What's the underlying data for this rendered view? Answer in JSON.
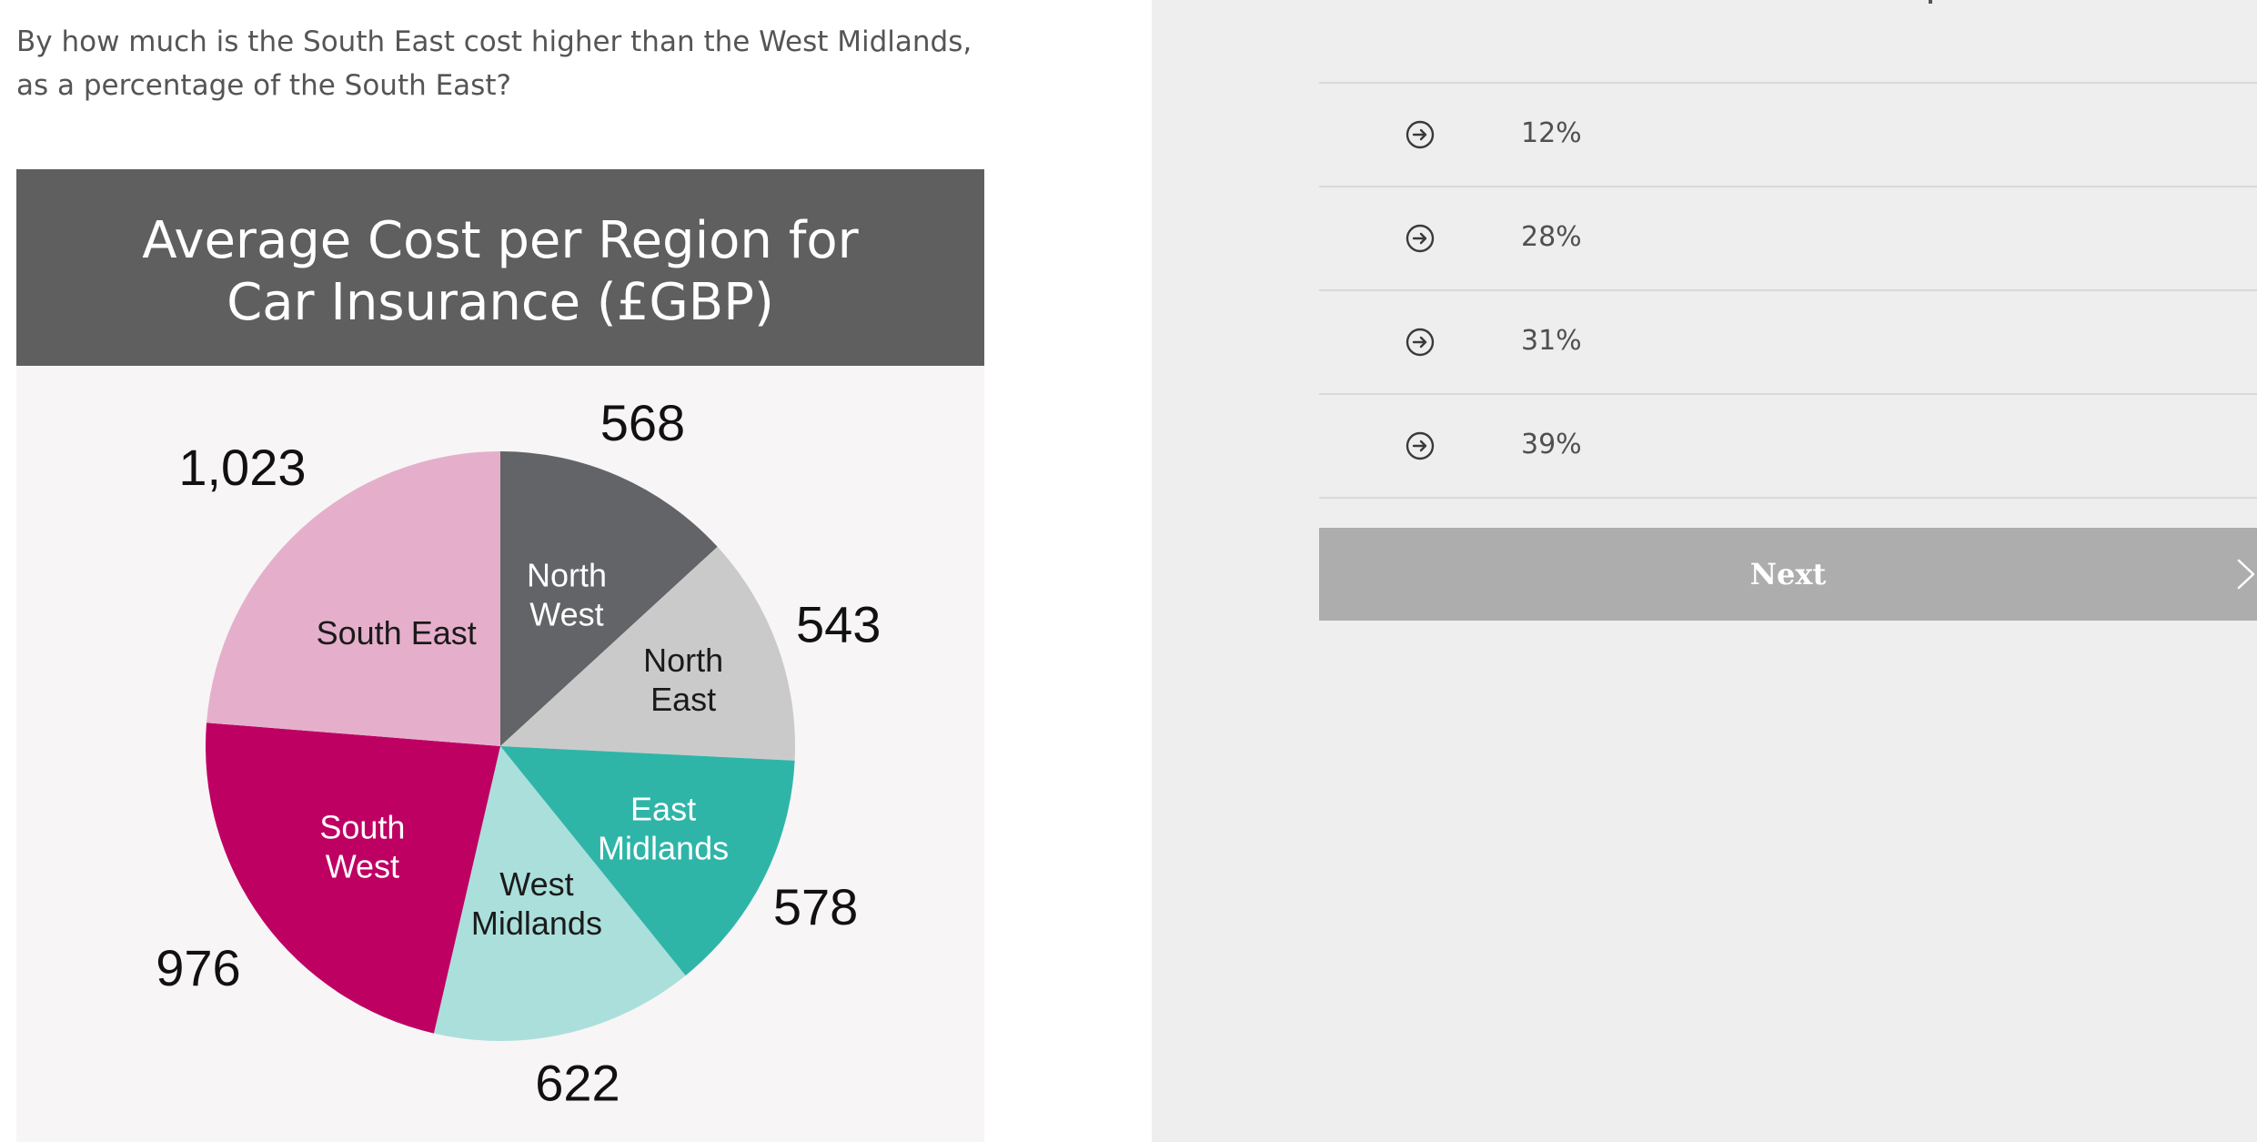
{
  "question": {
    "text": "By how much is the South East cost higher than the West Midlands, as a percentage of the South East?"
  },
  "chart_data": {
    "type": "pie",
    "title_lines": [
      "Average Cost per Region for",
      "Car Insurance (£GBP)"
    ],
    "slices": [
      {
        "label_lines": [
          "North",
          "West"
        ],
        "value": 568,
        "value_label": "568",
        "color": "#626467",
        "label_color": "#ffffff"
      },
      {
        "label_lines": [
          "North",
          "East"
        ],
        "value": 543,
        "value_label": "543",
        "color": "#cbcacb",
        "label_color": "#1a1a1a"
      },
      {
        "label_lines": [
          "East",
          "Midlands"
        ],
        "value": 578,
        "value_label": "578",
        "color": "#2fb5a8",
        "label_color": "#ffffff"
      },
      {
        "label_lines": [
          "West",
          "Midlands"
        ],
        "value": 622,
        "value_label": "622",
        "color": "#abdfdb",
        "label_color": "#1a1a1a"
      },
      {
        "label_lines": [
          "South",
          "West"
        ],
        "value": 976,
        "value_label": "976",
        "color": "#be0063",
        "label_color": "#ffffff"
      },
      {
        "label_lines": [
          "South East"
        ],
        "value": 1023,
        "value_label": "1,023",
        "color": "#e5afcb",
        "label_color": "#1a1a1a"
      }
    ]
  },
  "answers": [
    {
      "label": "12%",
      "icon": "arrow-right-circle-icon"
    },
    {
      "label": "28%",
      "icon": "arrow-right-circle-icon"
    },
    {
      "label": "31%",
      "icon": "arrow-right-circle-icon"
    },
    {
      "label": "39%",
      "icon": "arrow-right-circle-icon"
    }
  ],
  "next_button": {
    "label": "Next",
    "icon": "chevron-right-icon"
  },
  "colors": {
    "chart_header_bg": "#5f5f5f",
    "right_pane_bg": "#eeeeee",
    "button_bg": "#adadad"
  }
}
